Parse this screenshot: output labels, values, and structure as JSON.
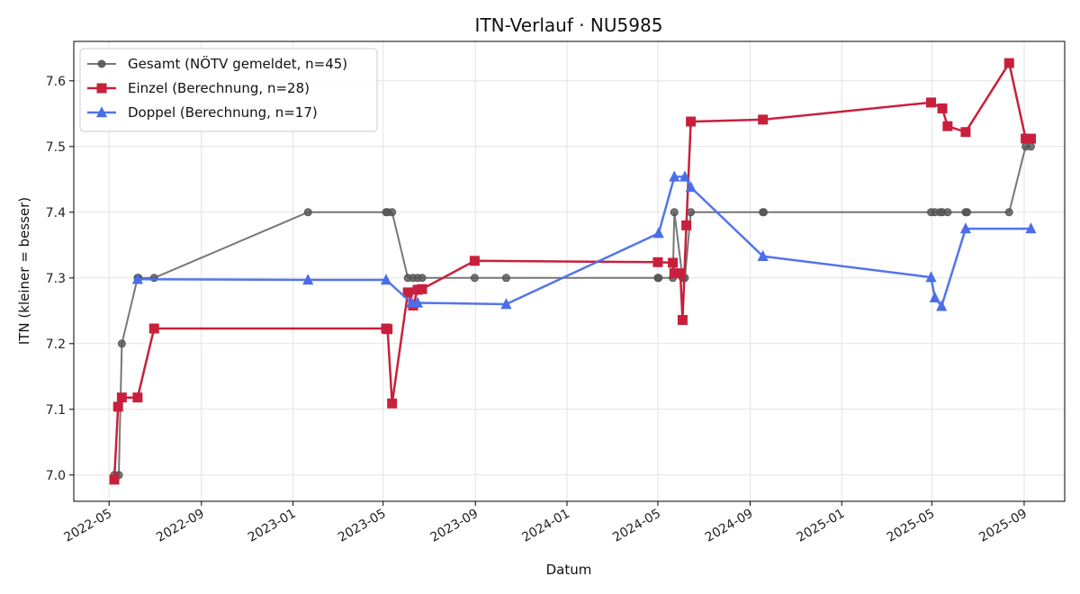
{
  "chart_data": {
    "type": "line",
    "title": "ITN-Verlauf · NU5985",
    "xlabel": "Datum",
    "ylabel": "ITN  (kleiner = besser)",
    "x_type": "date",
    "xlim": [
      "2022-03-15",
      "2025-10-25"
    ],
    "ylim": [
      6.96,
      7.66
    ],
    "x_ticks": [
      "2022-05-01",
      "2022-09-01",
      "2023-01-01",
      "2023-05-01",
      "2023-09-01",
      "2024-01-01",
      "2024-05-01",
      "2024-09-01",
      "2025-01-01",
      "2025-05-01",
      "2025-09-01"
    ],
    "x_tick_labels": [
      "2022-05",
      "2022-09",
      "2023-01",
      "2023-05",
      "2023-09",
      "2024-01",
      "2024-05",
      "2024-09",
      "2025-01",
      "2025-05",
      "2025-09"
    ],
    "y_ticks": [
      7.0,
      7.1,
      7.2,
      7.3,
      7.4,
      7.5,
      7.6
    ],
    "y_tick_labels": [
      "7.0",
      "7.1",
      "7.2",
      "7.3",
      "7.4",
      "7.5",
      "7.6"
    ],
    "grid": true,
    "legend_position": "top-left",
    "series": [
      {
        "name": "Gesamt (NÖTV gemeldet, n=45)",
        "color": "#555555",
        "marker": "circle",
        "x": [
          "2022-05-08",
          "2022-05-14",
          "2022-05-18",
          "2022-06-08",
          "2022-06-09",
          "2022-06-30",
          "2023-01-21",
          "2023-05-05",
          "2023-05-07",
          "2023-05-13",
          "2023-06-03",
          "2023-06-10",
          "2023-06-16",
          "2023-06-22",
          "2023-08-31",
          "2023-10-12",
          "2024-05-01",
          "2024-05-02",
          "2024-05-21",
          "2024-05-23",
          "2024-06-03",
          "2024-06-06",
          "2024-06-14",
          "2024-09-18",
          "2024-09-19",
          "2025-04-30",
          "2025-05-05",
          "2025-05-12",
          "2025-05-15",
          "2025-05-22",
          "2025-06-15",
          "2025-06-17",
          "2025-08-12",
          "2025-09-03",
          "2025-09-10"
        ],
        "y": [
          7.0,
          7.0,
          7.2,
          7.3,
          7.3,
          7.3,
          7.4,
          7.4,
          7.4,
          7.4,
          7.3,
          7.3,
          7.3,
          7.3,
          7.3,
          7.3,
          7.3,
          7.3,
          7.3,
          7.4,
          7.3,
          7.3,
          7.4,
          7.4,
          7.4,
          7.4,
          7.4,
          7.4,
          7.4,
          7.4,
          7.4,
          7.4,
          7.4,
          7.5,
          7.5
        ]
      },
      {
        "name": "Einzel (Berechnung, n=28)",
        "color": "#c8203c",
        "marker": "square",
        "x": [
          "2022-05-08",
          "2022-05-13",
          "2022-05-18",
          "2022-06-08",
          "2022-06-30",
          "2023-05-05",
          "2023-05-07",
          "2023-05-13",
          "2023-06-03",
          "2023-06-10",
          "2023-06-16",
          "2023-06-22",
          "2023-08-31",
          "2024-05-01",
          "2024-05-21",
          "2024-05-23",
          "2024-05-31",
          "2024-06-03",
          "2024-06-08",
          "2024-06-14",
          "2024-09-18",
          "2025-04-30",
          "2025-05-15",
          "2025-05-22",
          "2025-06-15",
          "2025-08-12",
          "2025-09-03",
          "2025-09-10"
        ],
        "y": [
          6.993,
          7.104,
          7.118,
          7.118,
          7.223,
          7.223,
          7.222,
          7.109,
          7.278,
          7.258,
          7.282,
          7.283,
          7.326,
          7.324,
          7.323,
          7.307,
          7.307,
          7.236,
          7.38,
          7.538,
          7.541,
          7.567,
          7.558,
          7.531,
          7.522,
          7.627,
          7.512,
          7.512
        ]
      },
      {
        "name": "Doppel (Berechnung, n=17)",
        "color": "#4a6ee8",
        "marker": "triangle",
        "x": [
          "2022-06-08",
          "2023-01-21",
          "2023-05-05",
          "2023-06-08",
          "2023-06-16",
          "2023-10-12",
          "2024-05-02",
          "2024-05-23",
          "2024-06-06",
          "2024-06-14",
          "2024-09-18",
          "2025-04-30",
          "2025-05-05",
          "2025-05-14",
          "2025-06-15",
          "2025-09-10"
        ],
        "y": [
          7.298,
          7.297,
          7.297,
          7.262,
          7.262,
          7.26,
          7.368,
          7.454,
          7.454,
          7.438,
          7.333,
          7.301,
          7.27,
          7.257,
          7.375,
          7.375
        ]
      }
    ]
  }
}
